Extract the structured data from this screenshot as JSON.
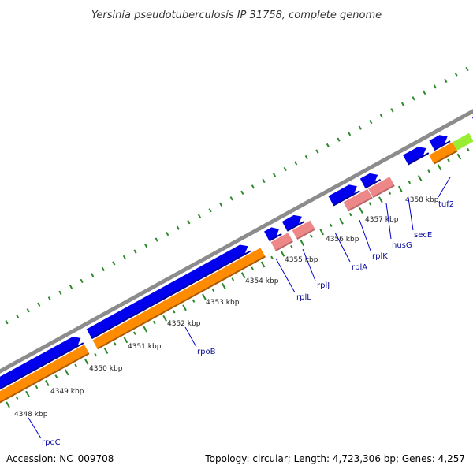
{
  "title": "Yersinia pseudotuberculosis IP 31758, complete genome",
  "accession": "Accession: NC_009708",
  "topology": "Topology: circular; Length: 4,723,306 bp; Genes: 4,257",
  "colors": {
    "backbone": "#8c8c8c",
    "forward_cds": "#0000ee",
    "gene": "#ff8c00",
    "rna": "#ee8888",
    "highlight": "#99ee33",
    "repeat": "#44ccdd",
    "tick": "#2a8a2a",
    "label_line": "#0000cc"
  },
  "scale": {
    "ticks": [
      {
        "label": "4348 kbp"
      },
      {
        "label": "4349 kbp"
      },
      {
        "label": "4350 kbp"
      },
      {
        "label": "4351 kbp"
      },
      {
        "label": "4352 kbp"
      },
      {
        "label": "4353 kbp"
      },
      {
        "label": "4354 kbp"
      },
      {
        "label": "4355 kbp"
      },
      {
        "label": "4356 kbp"
      },
      {
        "label": "4357 kbp"
      },
      {
        "label": "4358 kbp"
      }
    ]
  },
  "genes": [
    {
      "name": "rpoC"
    },
    {
      "name": "rpoB"
    },
    {
      "name": "rplL"
    },
    {
      "name": "rplJ"
    },
    {
      "name": "rplA"
    },
    {
      "name": "rplK"
    },
    {
      "name": "nusG"
    },
    {
      "name": "secE"
    },
    {
      "name": "tuf2"
    }
  ]
}
